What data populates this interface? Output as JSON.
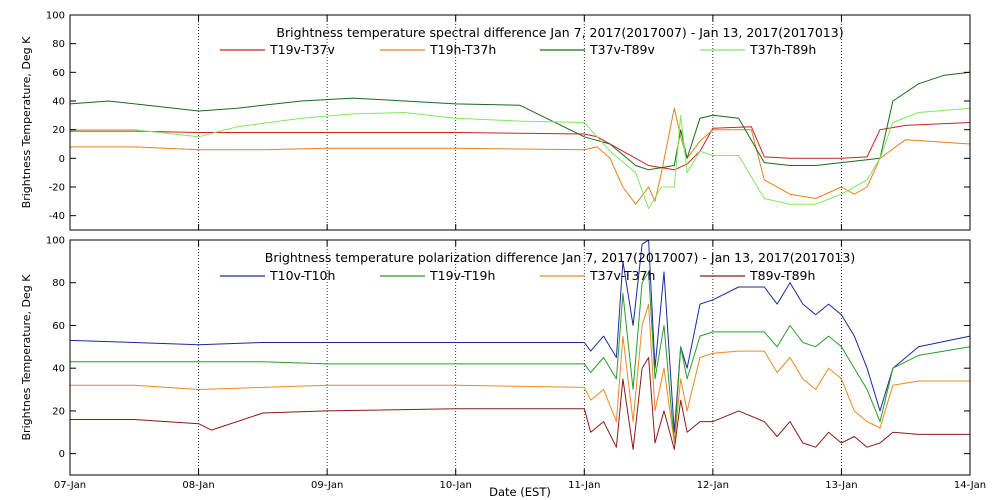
{
  "chart_data": [
    {
      "type": "line",
      "title": "Brightness temperature spectral difference    Jan  7, 2017(2017007) - Jan 13, 2017(2017013)",
      "ylabel": "Brightness Temperature, Deg K",
      "xlabel": "",
      "ylim": [
        -50,
        100
      ],
      "yticks": [
        -40,
        -20,
        0,
        20,
        40,
        60,
        80,
        100
      ],
      "x_ticks": [
        "07-Jan",
        "08-Jan",
        "09-Jan",
        "10-Jan",
        "11-Jan",
        "12-Jan",
        "13-Jan",
        "14-Jan"
      ],
      "x_unit": "days since 07-Jan",
      "xlim": [
        0,
        7
      ],
      "grid": "dotted-vertical",
      "legend": "top",
      "series": [
        {
          "name": "T19v-T37v",
          "color": "#d02020",
          "x": [
            0,
            0.5,
            1,
            2,
            3,
            4,
            4.1,
            4.3,
            4.5,
            4.7,
            4.8,
            4.9,
            5.0,
            5.3,
            5.4,
            5.6,
            5.8,
            6.0,
            6.2,
            6.3,
            6.5,
            7
          ],
          "y": [
            19,
            19,
            18,
            18,
            18,
            17,
            15,
            5,
            -5,
            -8,
            -4,
            5,
            21,
            22,
            1,
            0,
            0,
            0,
            1,
            20,
            23,
            25
          ]
        },
        {
          "name": "T19h-T37h",
          "color": "#e8801a",
          "x": [
            0,
            0.5,
            1,
            1.5,
            2,
            3,
            4,
            4.1,
            4.2,
            4.3,
            4.4,
            4.5,
            4.55,
            4.6,
            4.7,
            4.75,
            4.8,
            4.9,
            5.0,
            5.3,
            5.4,
            5.6,
            5.8,
            6.0,
            6.1,
            6.2,
            6.3,
            6.5,
            7
          ],
          "y": [
            8,
            8,
            6,
            6,
            7,
            7,
            6,
            8,
            0,
            -20,
            -32,
            -20,
            -30,
            -10,
            35,
            15,
            0,
            12,
            20,
            20,
            -15,
            -25,
            -28,
            -20,
            -25,
            -20,
            0,
            13,
            10
          ]
        },
        {
          "name": "T37v-T89v",
          "color": "#1a6b1a",
          "x": [
            0,
            0.3,
            0.6,
            1,
            1.3,
            1.8,
            2.2,
            2.6,
            3,
            3.5,
            4,
            4.2,
            4.4,
            4.5,
            4.7,
            4.75,
            4.8,
            4.9,
            5.0,
            5.2,
            5.4,
            5.6,
            5.8,
            6.0,
            6.2,
            6.3,
            6.4,
            6.6,
            6.8,
            7
          ],
          "y": [
            38,
            40,
            37,
            33,
            35,
            40,
            42,
            40,
            38,
            37,
            15,
            10,
            -5,
            -8,
            -5,
            20,
            0,
            28,
            30,
            28,
            -3,
            -5,
            -5,
            -3,
            -1,
            0,
            40,
            52,
            58,
            60
          ]
        },
        {
          "name": "T37h-T89h",
          "color": "#80e860",
          "x": [
            0,
            0.5,
            1,
            1.3,
            1.8,
            2.2,
            2.6,
            3,
            3.5,
            4,
            4.2,
            4.4,
            4.5,
            4.6,
            4.7,
            4.75,
            4.8,
            4.9,
            5.0,
            5.2,
            5.4,
            5.6,
            5.8,
            6.0,
            6.2,
            6.3,
            6.4,
            6.6,
            7
          ],
          "y": [
            20,
            20,
            15,
            22,
            28,
            31,
            32,
            28,
            26,
            25,
            5,
            -10,
            -35,
            -20,
            -20,
            30,
            -10,
            5,
            2,
            2,
            -28,
            -32,
            -32,
            -25,
            -15,
            0,
            25,
            32,
            35
          ]
        }
      ]
    },
    {
      "type": "line",
      "title": "Brightness temperature polarization difference    Jan  7, 2017(2017007) - Jan 13, 2017(2017013)",
      "ylabel": "Brightnes Temperature, Deg K",
      "xlabel": "Date (EST)",
      "ylim": [
        -10,
        100
      ],
      "yticks": [
        0,
        20,
        40,
        60,
        80,
        100
      ],
      "x_ticks": [
        "07-Jan",
        "08-Jan",
        "09-Jan",
        "10-Jan",
        "11-Jan",
        "12-Jan",
        "13-Jan",
        "14-Jan"
      ],
      "x_unit": "days since 07-Jan",
      "xlim": [
        0,
        7
      ],
      "grid": "dotted-vertical",
      "legend": "top",
      "series": [
        {
          "name": "T10v-T10h",
          "color": "#1a2a9a",
          "x": [
            0,
            0.5,
            1,
            1.5,
            2,
            3,
            4,
            4.05,
            4.15,
            4.25,
            4.3,
            4.38,
            4.45,
            4.5,
            4.55,
            4.62,
            4.7,
            4.75,
            4.8,
            4.9,
            5.0,
            5.2,
            5.4,
            5.5,
            5.6,
            5.7,
            5.8,
            5.9,
            6.0,
            6.1,
            6.2,
            6.3,
            6.4,
            6.6,
            7
          ],
          "y": [
            53,
            52,
            51,
            52,
            52,
            52,
            52,
            48,
            55,
            45,
            90,
            60,
            98,
            100,
            40,
            85,
            10,
            50,
            40,
            70,
            72,
            78,
            78,
            70,
            80,
            70,
            65,
            70,
            65,
            55,
            40,
            20,
            40,
            50,
            55
          ]
        },
        {
          "name": "T19v-T19h",
          "color": "#2a9a2a",
          "x": [
            0,
            0.5,
            1,
            1.5,
            2,
            3,
            4,
            4.05,
            4.15,
            4.25,
            4.3,
            4.38,
            4.45,
            4.5,
            4.55,
            4.62,
            4.7,
            4.75,
            4.8,
            4.9,
            5.0,
            5.2,
            5.4,
            5.5,
            5.6,
            5.7,
            5.8,
            5.9,
            6.0,
            6.1,
            6.2,
            6.3,
            6.4,
            6.6,
            7
          ],
          "y": [
            43,
            43,
            43,
            43,
            42,
            42,
            42,
            38,
            45,
            35,
            75,
            30,
            80,
            85,
            35,
            60,
            5,
            50,
            35,
            55,
            57,
            57,
            57,
            50,
            60,
            52,
            50,
            55,
            50,
            40,
            30,
            15,
            40,
            46,
            50
          ]
        },
        {
          "name": "T37v-T37h",
          "color": "#e88a20",
          "x": [
            0,
            0.5,
            1,
            1.5,
            2,
            3,
            4,
            4.05,
            4.15,
            4.25,
            4.3,
            4.38,
            4.45,
            4.5,
            4.55,
            4.62,
            4.7,
            4.75,
            4.8,
            4.9,
            5.0,
            5.2,
            5.4,
            5.5,
            5.6,
            5.7,
            5.8,
            5.9,
            6.0,
            6.1,
            6.2,
            6.3,
            6.4,
            6.6,
            7
          ],
          "y": [
            32,
            32,
            30,
            31,
            32,
            32,
            31,
            25,
            30,
            15,
            55,
            15,
            60,
            70,
            20,
            40,
            5,
            35,
            20,
            45,
            47,
            48,
            48,
            38,
            45,
            35,
            30,
            40,
            35,
            20,
            15,
            12,
            32,
            34,
            34
          ]
        },
        {
          "name": "T89v-T89h",
          "color": "#8a1a1a",
          "x": [
            0,
            0.5,
            1,
            1.1,
            1.5,
            2,
            3,
            4,
            4.05,
            4.15,
            4.25,
            4.3,
            4.38,
            4.45,
            4.5,
            4.55,
            4.62,
            4.7,
            4.75,
            4.8,
            4.9,
            5.0,
            5.2,
            5.4,
            5.5,
            5.6,
            5.7,
            5.8,
            5.9,
            6.0,
            6.1,
            6.2,
            6.3,
            6.4,
            6.6,
            7
          ],
          "y": [
            16,
            16,
            14,
            11,
            19,
            20,
            21,
            21,
            10,
            15,
            3,
            35,
            2,
            40,
            45,
            5,
            20,
            2,
            25,
            10,
            15,
            15,
            20,
            15,
            8,
            15,
            5,
            3,
            10,
            5,
            8,
            3,
            5,
            10,
            9,
            9
          ]
        }
      ]
    }
  ]
}
